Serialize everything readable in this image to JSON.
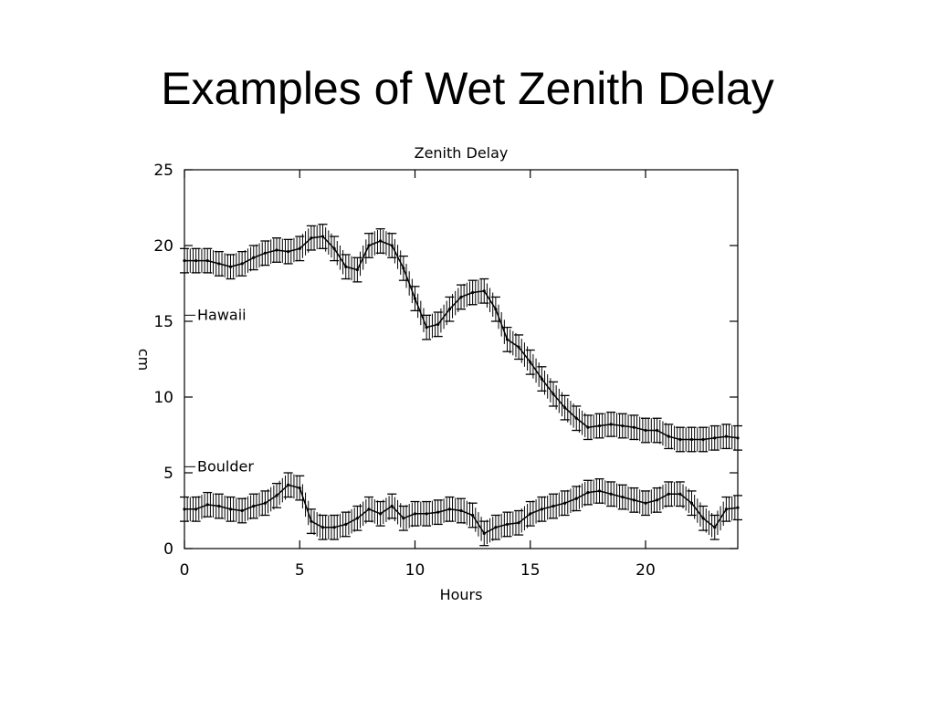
{
  "slide": {
    "title": "Examples of Wet Zenith Delay"
  },
  "chart_data": {
    "type": "line",
    "title": "Zenith Delay",
    "xlabel": "Hours",
    "ylabel": "cm",
    "xlim": [
      0,
      24
    ],
    "ylim": [
      0,
      25
    ],
    "xticks": [
      "0",
      "5",
      "10",
      "15",
      "20"
    ],
    "yticks": [
      "0",
      "5",
      "10",
      "15",
      "20",
      "25"
    ],
    "grid": false,
    "error_bar_halfwidth": 0.8,
    "series": [
      {
        "name": "Hawaii",
        "x": [
          0,
          0.5,
          1,
          1.5,
          2,
          2.5,
          3,
          3.5,
          4,
          4.5,
          5,
          5.5,
          6,
          6.5,
          7,
          7.5,
          8,
          8.5,
          9,
          9.5,
          10,
          10.5,
          11,
          11.5,
          12,
          12.5,
          13,
          13.5,
          14,
          14.5,
          15,
          15.5,
          16,
          16.5,
          17,
          17.5,
          18,
          18.5,
          19,
          19.5,
          20,
          20.5,
          21,
          21.5,
          22,
          22.5,
          23,
          23.5,
          24
        ],
        "values": [
          19.0,
          19.0,
          19.0,
          18.8,
          18.6,
          18.8,
          19.2,
          19.5,
          19.7,
          19.6,
          19.8,
          20.5,
          20.6,
          19.8,
          18.6,
          18.4,
          20.0,
          20.3,
          20.0,
          18.5,
          16.5,
          14.6,
          14.8,
          15.8,
          16.6,
          16.9,
          17.0,
          15.8,
          13.8,
          13.3,
          12.3,
          11.2,
          10.2,
          9.3,
          8.6,
          8.0,
          8.1,
          8.2,
          8.1,
          8.0,
          7.8,
          7.8,
          7.4,
          7.2,
          7.2,
          7.2,
          7.3,
          7.4,
          7.3
        ]
      },
      {
        "name": "Boulder",
        "x": [
          0,
          0.5,
          1,
          1.5,
          2,
          2.5,
          3,
          3.5,
          4,
          4.5,
          5,
          5.5,
          6,
          6.5,
          7,
          7.5,
          8,
          8.5,
          9,
          9.5,
          10,
          10.5,
          11,
          11.5,
          12,
          12.5,
          13,
          13.5,
          14,
          14.5,
          15,
          15.5,
          16,
          16.5,
          17,
          17.5,
          18,
          18.5,
          19,
          19.5,
          20,
          20.5,
          21,
          21.5,
          22,
          22.5,
          23,
          23.5,
          24
        ],
        "values": [
          2.6,
          2.6,
          2.9,
          2.8,
          2.6,
          2.5,
          2.8,
          3.0,
          3.5,
          4.2,
          4.0,
          1.8,
          1.4,
          1.4,
          1.6,
          2.0,
          2.6,
          2.3,
          2.8,
          2.0,
          2.3,
          2.3,
          2.4,
          2.6,
          2.5,
          2.2,
          1.0,
          1.4,
          1.6,
          1.7,
          2.3,
          2.6,
          2.8,
          3.0,
          3.3,
          3.7,
          3.8,
          3.6,
          3.4,
          3.2,
          3.0,
          3.2,
          3.6,
          3.6,
          3.0,
          2.0,
          1.4,
          2.6,
          2.7
        ]
      }
    ]
  }
}
